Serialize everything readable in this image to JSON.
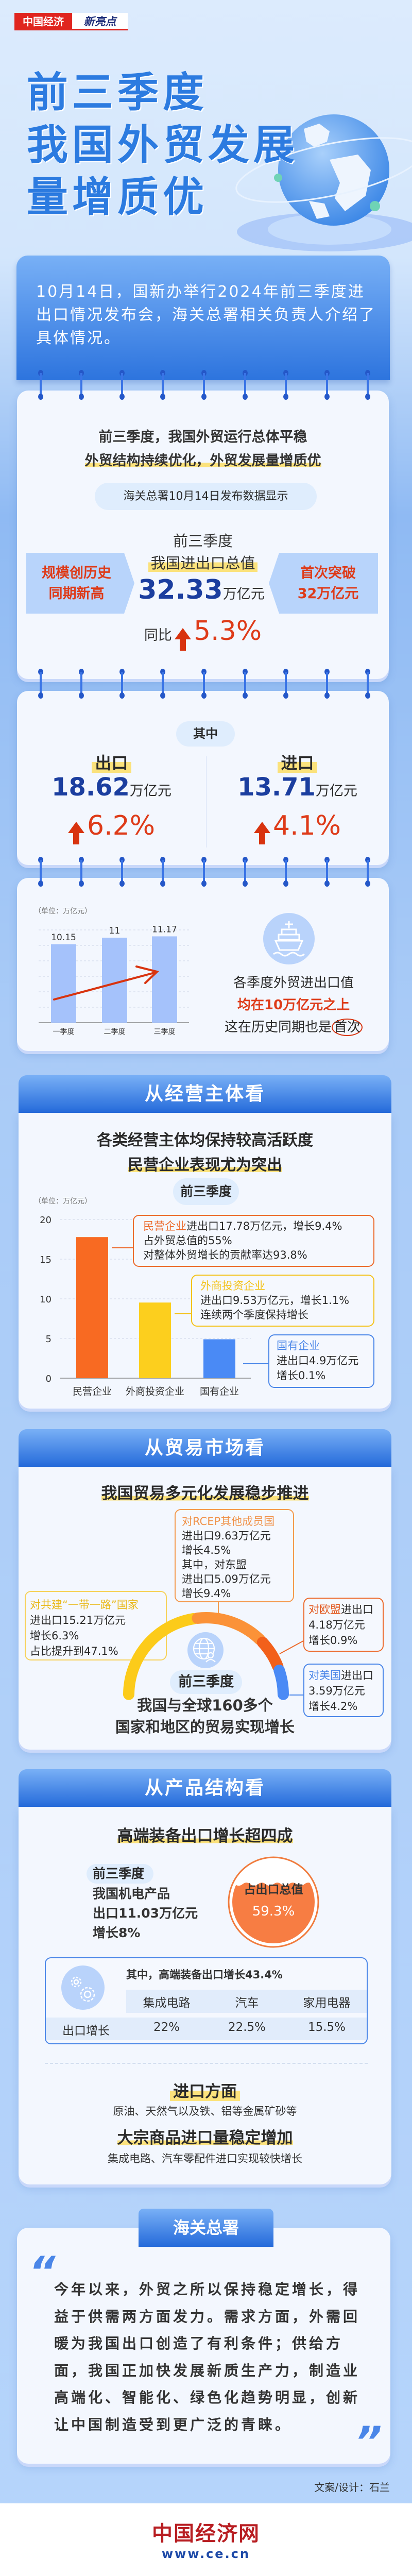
{
  "brand": {
    "left": "中国经济",
    "right": "新亮点"
  },
  "title": {
    "lines": [
      "前三季度",
      "我国外贸发展",
      "量增质优"
    ]
  },
  "intro": "10月14日，国新办举行2024年前三季度进出口情况发布会，海关总署相关负责人介绍了具体情况。",
  "overview": {
    "heading": [
      "前三季度，我国外贸运行总体平稳",
      "外贸结构持续优化，外贸发展量增质优"
    ],
    "source_pill": "海关总署10月14日发布数据显示",
    "period": "前三季度",
    "metric_label": "我国进出口总值",
    "value": "32.33",
    "unit": "万亿元",
    "yoy_label": "同比",
    "yoy": "5.3%",
    "left_badge": [
      "规模创历史",
      "同期新高"
    ],
    "right_badge": [
      "首次突破",
      "32万亿元"
    ]
  },
  "breakdown": {
    "pill": "其中",
    "export": {
      "label": "出口",
      "value": "18.62",
      "unit": "万亿元",
      "growth": "6.2%"
    },
    "import": {
      "label": "进口",
      "value": "13.71",
      "unit": "万亿元",
      "growth": "4.1%"
    }
  },
  "chart_data": [
    {
      "type": "bar",
      "unit_label": "（单位：万亿元）",
      "categories": [
        "一季度",
        "二季度",
        "三季度"
      ],
      "values": [
        10.15,
        11,
        11.17
      ],
      "value_labels": [
        "10.15",
        "11",
        "11.17"
      ],
      "ylim": [
        0,
        12
      ],
      "grid": true,
      "trend_arrow": true,
      "bar_color": "#a5c2fb"
    },
    {
      "type": "bar",
      "unit_label": "（单位：万亿元）",
      "categories": [
        "民营企业",
        "外商投资企业",
        "国有企业"
      ],
      "values": [
        17.78,
        9.53,
        4.9
      ],
      "yticks": [
        "0",
        "5",
        "10",
        "15",
        "20"
      ],
      "ylim": [
        0,
        20
      ],
      "grid": true,
      "colors": [
        "#f86a22",
        "#fccf1e",
        "#4a8af5"
      ]
    },
    {
      "type": "pie",
      "shape": "semicircle-arc",
      "categories": [
        "对共建“一带一路”国家",
        "对RCEP其他成员国",
        "对欧盟",
        "对美国"
      ],
      "values": [
        15.21,
        9.63,
        4.18,
        3.59
      ],
      "colors": [
        "#fccb1a",
        "#fb9238",
        "#f2601b",
        "#4a8af5"
      ]
    }
  ],
  "quarters_note": {
    "line1": "各季度外贸进出口值",
    "line2": "均在10万亿元之上",
    "line3a": "这在历史同期也是",
    "line3b": "首次"
  },
  "entities": {
    "header": "从经营主体看",
    "heading": [
      "各类经营主体均保持较高活跃度",
      "民营企业表现尤为突出"
    ],
    "pill": "前三季度",
    "callouts": [
      {
        "name": "民营企业",
        "lines": [
          "进出口17.78万亿元，增长9.4%",
          "占外贸总值的55%",
          "对整体外贸增长的贡献率达93.8%"
        ],
        "color": "#ec6a2c"
      },
      {
        "name": "外商投资企业",
        "lines": [
          "进出口9.53万亿元，增长1.1%",
          "连续两个季度保持增长"
        ],
        "color": "#f4c21a"
      },
      {
        "name": "国有企业",
        "lines": [
          "进出口4.9万亿元",
          "增长0.1%"
        ],
        "color": "#4a86e8"
      }
    ]
  },
  "markets": {
    "header": "从贸易市场看",
    "heading": "我国贸易多元化发展稳步推进",
    "rcep": {
      "title": "对RCEP其他成员国",
      "lines": [
        "进出口9.63万亿元",
        "增长4.5%",
        "其中，对东盟",
        "进出口5.09万亿元",
        "增长9.4%"
      ]
    },
    "belt_road": {
      "title": "对共建“一带一路”国家",
      "lines": [
        "进出口15.21万亿元",
        "增长6.3%",
        "占比提升到47.1%"
      ]
    },
    "eu": {
      "title": "对欧盟",
      "suffix": "进出口",
      "lines": [
        "4.18万亿元",
        "增长0.9%"
      ]
    },
    "us": {
      "title": "对美国",
      "suffix": "进出口",
      "lines": [
        "3.59万亿元",
        "增长4.2%"
      ]
    },
    "pill": "前三季度",
    "summary": [
      "我国与全球160多个",
      "国家和地区的贸易实现增长"
    ]
  },
  "products": {
    "header": "从产品结构看",
    "heading": "高端装备出口增长超四成",
    "pill": "前三季度",
    "lines": [
      "我国机电产品",
      "出口11.03万亿元",
      "增长8%"
    ],
    "share_label": "占出口总值",
    "share": "59.3%",
    "share_value": 59.3,
    "hi_end": "其中，高端装备出口增长43.4%",
    "table": {
      "columns": [
        "集成电路",
        "汽车",
        "家用电器"
      ],
      "row_label": "出口增长",
      "values": [
        "22%",
        "22.5%",
        "15.5%"
      ]
    },
    "import_title": "进口方面",
    "import_line1": "原油、天然气以及铁、铝等金属矿砂等",
    "import_highlight": "大宗商品进口量稳定增加",
    "import_line2": "集成电路、汽车零配件进口实现较快增长"
  },
  "quote": {
    "tab": "海关总署",
    "text": "今年以来，外贸之所以保持稳定增长，得益于供需两方面发力。需求方面，外需回暖为我国出口创造了有利条件；供给方面，我国正加快发展新质生产力，制造业高端化、智能化、绿色化趋势明显，创新让中国制造受到更广泛的青睐。"
  },
  "credit": "文案/设计：石兰",
  "footer": {
    "logo": "中国经济网",
    "url": "www.ce.cn"
  }
}
